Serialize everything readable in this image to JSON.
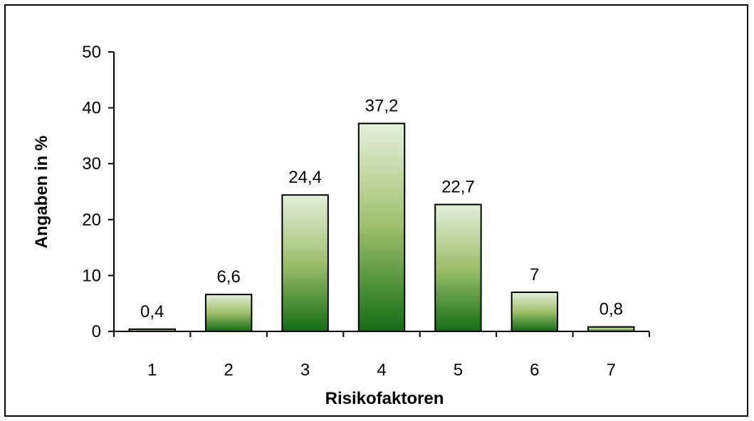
{
  "chart_data": {
    "type": "bar",
    "title": "",
    "xlabel": "Risikofaktoren",
    "ylabel": "Angaben in %",
    "categories": [
      "1",
      "2",
      "3",
      "4",
      "5",
      "6",
      "7"
    ],
    "values": [
      0.4,
      6.6,
      24.4,
      37.2,
      22.7,
      7,
      0.8
    ],
    "value_labels": [
      "0,4",
      "6,6",
      "24,4",
      "37,2",
      "22,7",
      "7",
      "0,8"
    ],
    "ylim": [
      0,
      50
    ],
    "yticks": [
      "0",
      "10",
      "20",
      "30",
      "40",
      "50"
    ],
    "ytick_values": [
      0,
      10,
      20,
      30,
      40,
      50
    ],
    "grid": false,
    "legend": "none",
    "colors": {
      "bar_top": "#e4f0dc",
      "bar_mid": "#9dbf6c",
      "bar_bottom": "#146b14",
      "outline": "#000000"
    }
  }
}
